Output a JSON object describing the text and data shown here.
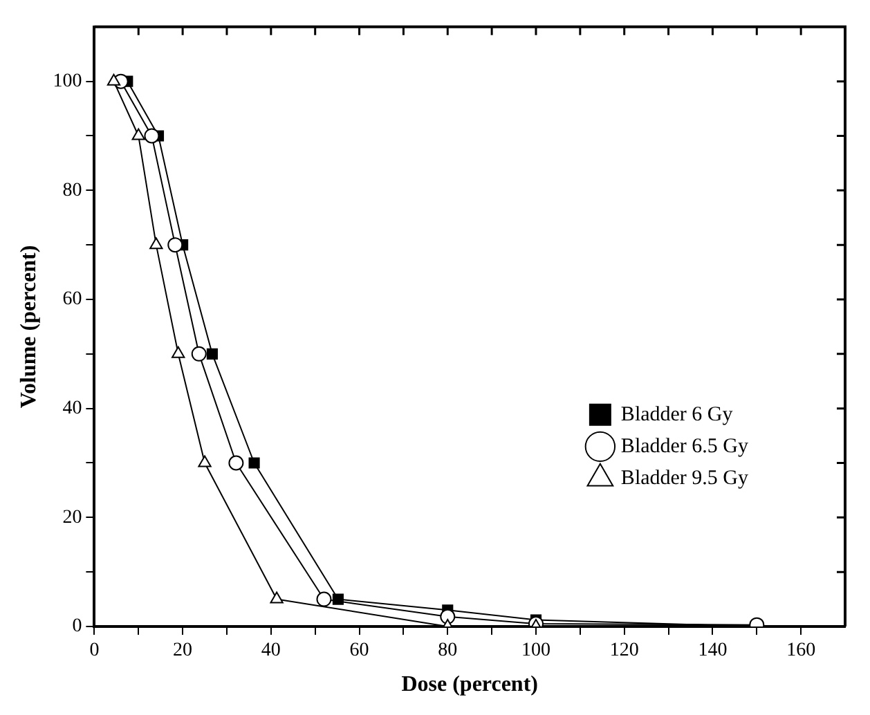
{
  "chart_data": {
    "type": "line",
    "xlabel": "Dose (percent)",
    "ylabel": "Volume (percent)",
    "xlim": [
      0,
      170
    ],
    "xticks": [
      0,
      {
        "value": 10,
        "label": null
      },
      20,
      {
        "value": 30,
        "label": null
      },
      40,
      {
        "value": 50,
        "label": null
      },
      60,
      {
        "value": 70,
        "label": null
      },
      80,
      {
        "value": 90,
        "label": null
      },
      100,
      {
        "value": 110,
        "label": null
      },
      120,
      {
        "value": 130,
        "label": null
      },
      140,
      {
        "value": 150,
        "label": null
      },
      160
    ],
    "ylim": [
      0,
      110
    ],
    "yticks": [
      0,
      {
        "value": 10,
        "label": null
      },
      20,
      {
        "value": 30,
        "label": null
      },
      40,
      {
        "value": 50,
        "label": null
      },
      60,
      {
        "value": 70,
        "label": null
      },
      80,
      {
        "value": 90,
        "label": null
      },
      100
    ],
    "legend": "right",
    "grid": false,
    "line_style": "solid",
    "series": [
      {
        "name": "Bladder 6 Gy",
        "color": "#000000",
        "marker": "square",
        "x": [
          7.5,
          14.5,
          20,
          26.7,
          36.2,
          55.2,
          80,
          100,
          150
        ],
        "values": [
          100,
          90,
          70,
          50,
          30,
          5,
          3,
          1.2,
          0
        ]
      },
      {
        "name": "Bladder 6.5 Gy",
        "color": "#000000",
        "marker": "circle",
        "x": [
          6,
          13,
          18.3,
          23.7,
          32.1,
          52,
          80,
          100,
          150
        ],
        "values": [
          100,
          90,
          70,
          50,
          30,
          5,
          1.8,
          0.5,
          0.3
        ]
      },
      {
        "name": "Bladder 9.5 Gy",
        "color": "#000000",
        "marker": "triangle",
        "x": [
          4.4,
          10,
          14,
          19,
          25,
          41.3,
          80,
          100
        ],
        "values": [
          100,
          90,
          70,
          50,
          30,
          5,
          0,
          0
        ]
      }
    ]
  }
}
